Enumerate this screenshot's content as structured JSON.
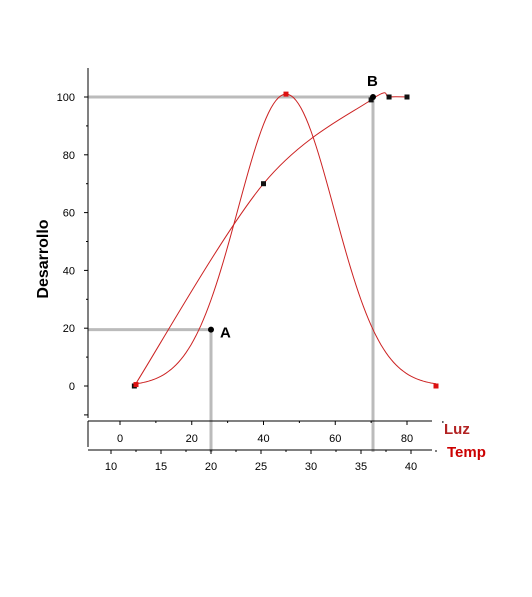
{
  "chart_data": {
    "type": "line",
    "ylabel": "Desarrollo",
    "ylim": [
      0,
      100
    ],
    "yticks": [
      "0",
      "20",
      "40",
      "60",
      "80",
      "100"
    ],
    "axes": {
      "luz": {
        "label": "Luz",
        "ticks": [
          "0",
          "20",
          "40",
          "60",
          "80"
        ],
        "range": [
          0,
          80
        ],
        "color": "#b22222"
      },
      "temp": {
        "label": "Temp",
        "ticks": [
          "10",
          "15",
          "20",
          "25",
          "30",
          "35",
          "40"
        ],
        "range": [
          10,
          40
        ],
        "color": "#cc0000"
      }
    },
    "series": [
      {
        "axis": "luz",
        "color": "#cc2222",
        "marker_color": "#111111",
        "points": [
          [
            4,
            0
          ],
          [
            40,
            70
          ],
          [
            70,
            99
          ],
          [
            75,
            100
          ],
          [
            80,
            100
          ]
        ]
      },
      {
        "axis": "temp",
        "color": "#cc2222",
        "marker_color": "#dd1111",
        "points": [
          [
            12.5,
            0.5
          ],
          [
            27.5,
            101
          ],
          [
            42.5,
            0
          ]
        ]
      }
    ],
    "annotations": [
      {
        "label": "A",
        "temp": 20,
        "y": 19.5
      },
      {
        "label": "B",
        "temp": 36.2,
        "y": 100
      }
    ],
    "guide_color": "#bbbbbb"
  }
}
